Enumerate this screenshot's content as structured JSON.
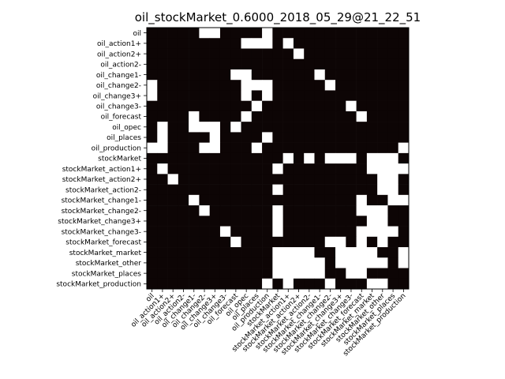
{
  "chart_data": {
    "type": "heatmap",
    "title": "oil_stockMarket_0.6000_2018_05_29@21_22_51",
    "xlabel": "",
    "ylabel": "",
    "colormap": {
      "zero": "#0d0505",
      "one": "#ffffff"
    },
    "labels": [
      "oil",
      "oil_action1+",
      "oil_action2+",
      "oil_action2-",
      "oil_change1-",
      "oil_change2-",
      "oil_change3+",
      "oil_change3-",
      "oil_forecast",
      "oil_opec",
      "oil_places",
      "oil_production",
      "stockMarket",
      "stockMarket_action1+",
      "stockMarket_action2+",
      "stockMarket_action2-",
      "stockMarket_change1-",
      "stockMarket_change2-",
      "stockMarket_change3+",
      "stockMarket_change3-",
      "stockMarket_forecast",
      "stockMarket_market",
      "stockMarket_other",
      "stockMarket_places",
      "stockMarket_production"
    ],
    "matrix": [
      [
        0,
        0,
        0,
        0,
        0,
        1,
        1,
        0,
        0,
        0,
        0,
        1,
        0,
        0,
        0,
        0,
        0,
        0,
        0,
        0,
        0,
        0,
        0,
        0,
        0
      ],
      [
        0,
        0,
        0,
        0,
        0,
        0,
        0,
        0,
        0,
        1,
        1,
        1,
        0,
        1,
        0,
        0,
        0,
        0,
        0,
        0,
        0,
        0,
        0,
        0,
        0
      ],
      [
        0,
        0,
        0,
        0,
        0,
        0,
        0,
        0,
        0,
        0,
        0,
        0,
        0,
        0,
        1,
        0,
        0,
        0,
        0,
        0,
        0,
        0,
        0,
        0,
        0
      ],
      [
        0,
        0,
        0,
        0,
        0,
        0,
        0,
        0,
        0,
        0,
        0,
        0,
        0,
        0,
        0,
        0,
        0,
        0,
        0,
        0,
        0,
        0,
        0,
        0,
        0
      ],
      [
        0,
        0,
        0,
        0,
        0,
        0,
        0,
        0,
        1,
        1,
        0,
        0,
        0,
        0,
        0,
        0,
        1,
        0,
        0,
        0,
        0,
        0,
        0,
        0,
        0
      ],
      [
        1,
        0,
        0,
        0,
        0,
        0,
        0,
        0,
        0,
        1,
        1,
        1,
        0,
        0,
        0,
        0,
        0,
        1,
        0,
        0,
        0,
        0,
        0,
        0,
        0
      ],
      [
        1,
        0,
        0,
        0,
        0,
        0,
        0,
        0,
        0,
        1,
        0,
        1,
        0,
        0,
        0,
        0,
        0,
        0,
        0,
        0,
        0,
        0,
        0,
        0,
        0
      ],
      [
        0,
        0,
        0,
        0,
        0,
        0,
        0,
        0,
        0,
        0,
        1,
        0,
        0,
        0,
        0,
        0,
        0,
        0,
        0,
        1,
        0,
        0,
        0,
        0,
        0
      ],
      [
        0,
        0,
        0,
        0,
        1,
        0,
        0,
        0,
        0,
        1,
        0,
        0,
        0,
        0,
        0,
        0,
        0,
        0,
        0,
        0,
        1,
        0,
        0,
        0,
        0
      ],
      [
        0,
        1,
        0,
        0,
        1,
        1,
        1,
        0,
        1,
        0,
        0,
        0,
        0,
        0,
        0,
        0,
        0,
        0,
        0,
        0,
        0,
        0,
        0,
        0,
        0
      ],
      [
        0,
        1,
        0,
        0,
        0,
        0,
        1,
        0,
        0,
        0,
        0,
        1,
        0,
        0,
        0,
        0,
        0,
        0,
        0,
        0,
        0,
        0,
        0,
        0,
        0
      ],
      [
        1,
        1,
        0,
        0,
        0,
        1,
        1,
        0,
        0,
        0,
        1,
        0,
        0,
        0,
        0,
        0,
        0,
        0,
        0,
        0,
        0,
        0,
        0,
        0,
        1
      ],
      [
        0,
        0,
        0,
        0,
        0,
        0,
        0,
        0,
        0,
        0,
        0,
        0,
        0,
        1,
        0,
        1,
        0,
        1,
        1,
        1,
        0,
        1,
        1,
        1,
        0
      ],
      [
        0,
        1,
        0,
        0,
        0,
        0,
        0,
        0,
        0,
        0,
        0,
        0,
        1,
        0,
        0,
        0,
        0,
        0,
        0,
        0,
        0,
        1,
        1,
        1,
        1
      ],
      [
        0,
        0,
        1,
        0,
        0,
        0,
        0,
        0,
        0,
        0,
        0,
        0,
        0,
        0,
        0,
        0,
        0,
        0,
        0,
        0,
        0,
        0,
        1,
        1,
        0
      ],
      [
        0,
        0,
        0,
        0,
        0,
        0,
        0,
        0,
        0,
        0,
        0,
        0,
        1,
        0,
        0,
        0,
        0,
        0,
        0,
        0,
        0,
        0,
        1,
        1,
        0
      ],
      [
        0,
        0,
        0,
        0,
        1,
        0,
        0,
        0,
        0,
        0,
        0,
        0,
        0,
        0,
        0,
        0,
        0,
        0,
        0,
        0,
        1,
        0,
        0,
        1,
        1
      ],
      [
        0,
        0,
        0,
        0,
        0,
        1,
        0,
        0,
        0,
        0,
        0,
        0,
        1,
        0,
        0,
        0,
        0,
        0,
        0,
        0,
        1,
        1,
        1,
        0,
        0
      ],
      [
        0,
        0,
        0,
        0,
        0,
        0,
        0,
        0,
        0,
        0,
        0,
        0,
        1,
        0,
        0,
        0,
        0,
        0,
        0,
        0,
        0,
        1,
        1,
        0,
        0
      ],
      [
        0,
        0,
        0,
        0,
        0,
        0,
        0,
        1,
        0,
        0,
        0,
        0,
        1,
        0,
        0,
        0,
        0,
        0,
        0,
        0,
        1,
        1,
        1,
        1,
        0
      ],
      [
        0,
        0,
        0,
        0,
        0,
        0,
        0,
        0,
        1,
        0,
        0,
        0,
        0,
        0,
        0,
        0,
        0,
        1,
        1,
        0,
        1,
        0,
        1,
        0,
        0
      ],
      [
        0,
        0,
        0,
        0,
        0,
        0,
        0,
        0,
        0,
        0,
        0,
        0,
        1,
        1,
        1,
        1,
        0,
        0,
        1,
        1,
        1,
        1,
        0,
        0,
        1
      ],
      [
        0,
        0,
        0,
        0,
        0,
        0,
        0,
        0,
        0,
        0,
        0,
        0,
        1,
        1,
        1,
        1,
        1,
        0,
        1,
        1,
        1,
        1,
        1,
        0,
        1
      ],
      [
        0,
        0,
        0,
        0,
        0,
        0,
        0,
        0,
        0,
        0,
        0,
        0,
        1,
        1,
        1,
        1,
        1,
        0,
        0,
        1,
        1,
        0,
        0,
        0,
        0
      ],
      [
        0,
        0,
        0,
        0,
        0,
        0,
        0,
        0,
        0,
        0,
        0,
        1,
        0,
        1,
        0,
        0,
        0,
        1,
        0,
        0,
        0,
        1,
        1,
        0,
        0
      ]
    ]
  }
}
